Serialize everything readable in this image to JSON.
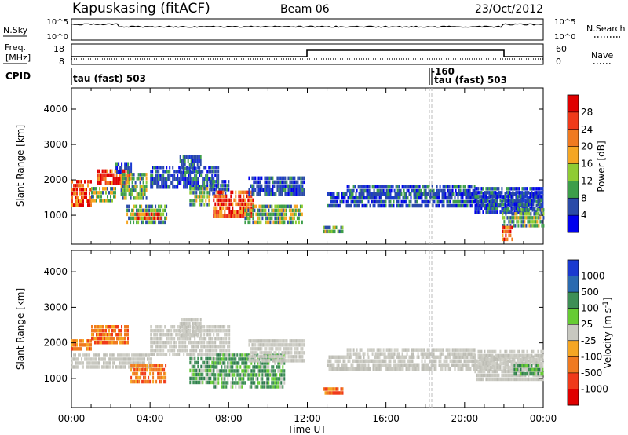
{
  "header": {
    "station": "Kapuskasing (fitACF)",
    "beam": "Beam 06",
    "date": "23/Oct/2012"
  },
  "nsky_panel": {
    "left_label": "N.Sky",
    "right_label": "N.Search",
    "left_ticks": [
      "10^5",
      "10^0"
    ],
    "right_ticks": [
      "10^5",
      "10^0"
    ]
  },
  "freq_panel": {
    "left_label_1": "Freq.",
    "left_label_2": "[MHz]",
    "right_label": "Nave",
    "left_ticks": [
      "18",
      "8"
    ],
    "right_ticks": [
      "60",
      "0"
    ]
  },
  "cpid_panel": {
    "label": "CPID",
    "segments": [
      {
        "label": "tau (fast) 503",
        "start_hour": 0
      },
      {
        "label": "tau (fast) 503",
        "start_hour": 18.1,
        "marker": "-160"
      }
    ]
  },
  "time_axis": {
    "label": "Time UT",
    "ticks": [
      "00:00",
      "04:00",
      "08:00",
      "12:00",
      "16:00",
      "20:00",
      "00:00"
    ],
    "range_hours": [
      0,
      24
    ]
  },
  "chart_data": [
    {
      "type": "heatmap",
      "name": "power",
      "ylabel": "Slant Range [km]",
      "yticks": [
        1000,
        2000,
        3000,
        4000
      ],
      "ylim": [
        180,
        4600
      ],
      "colorbar_label": "Power [dB]",
      "colorbar_ticks": [
        "28",
        "24",
        "20",
        "16",
        "12",
        "8",
        "4"
      ],
      "colorbar_colors": [
        "#e00000",
        "#f03a1a",
        "#f07a20",
        "#f5a623",
        "#8fcc33",
        "#3d9e4a",
        "#2a4aa8",
        "#0000ee"
      ],
      "regions": [
        {
          "t0": 0.0,
          "t1": 1.0,
          "r0": 1250,
          "r1": 2000,
          "level": "high"
        },
        {
          "t0": 1.0,
          "t1": 2.2,
          "r0": 1400,
          "r1": 1800,
          "level": "mid"
        },
        {
          "t0": 1.3,
          "t1": 2.9,
          "r0": 1900,
          "r1": 2300,
          "level": "high"
        },
        {
          "t0": 2.2,
          "t1": 3.0,
          "r0": 2200,
          "r1": 2500,
          "level": "low"
        },
        {
          "t0": 2.5,
          "t1": 3.8,
          "r0": 1500,
          "r1": 2200,
          "level": "mid"
        },
        {
          "t0": 2.8,
          "t1": 4.8,
          "r0": 850,
          "r1": 1300,
          "level": "mid"
        },
        {
          "t0": 3.3,
          "t1": 4.5,
          "r0": 880,
          "r1": 1080,
          "level": "high"
        },
        {
          "t0": 4.0,
          "t1": 7.5,
          "r0": 1800,
          "r1": 2400,
          "level": "low"
        },
        {
          "t0": 5.5,
          "t1": 6.6,
          "r0": 2200,
          "r1": 2700,
          "level": "low"
        },
        {
          "t0": 6.0,
          "t1": 7.0,
          "r0": 1300,
          "r1": 1800,
          "level": "mid"
        },
        {
          "t0": 7.0,
          "t1": 8.0,
          "r0": 1600,
          "r1": 2000,
          "level": "low"
        },
        {
          "t0": 7.2,
          "t1": 9.2,
          "r0": 1000,
          "r1": 1700,
          "level": "high"
        },
        {
          "t0": 8.8,
          "t1": 10.8,
          "r0": 850,
          "r1": 1300,
          "level": "mid"
        },
        {
          "t0": 9.0,
          "t1": 11.8,
          "r0": 1600,
          "r1": 2100,
          "level": "low"
        },
        {
          "t0": 10.5,
          "t1": 11.7,
          "r0": 800,
          "r1": 1300,
          "level": "mid"
        },
        {
          "t0": 12.8,
          "t1": 13.8,
          "r0": 550,
          "r1": 700,
          "level": "mid"
        },
        {
          "t0": 13.0,
          "t1": 24.0,
          "r0": 1300,
          "r1": 1650,
          "level": "low"
        },
        {
          "t0": 14.0,
          "t1": 20.5,
          "r0": 1650,
          "r1": 1850,
          "level": "low"
        },
        {
          "t0": 20.5,
          "t1": 24.0,
          "r0": 1100,
          "r1": 1800,
          "level": "low"
        },
        {
          "t0": 21.9,
          "t1": 24.0,
          "r0": 750,
          "r1": 1200,
          "level": "mid"
        },
        {
          "t0": 21.9,
          "t1": 22.4,
          "r0": 300,
          "r1": 700,
          "level": "high"
        }
      ]
    },
    {
      "type": "heatmap",
      "name": "velocity",
      "ylabel": "Slant Range [km]",
      "yticks": [
        1000,
        2000,
        3000,
        4000
      ],
      "ylim": [
        180,
        4600
      ],
      "colorbar_label": "Velocity [m s^-1]",
      "colorbar_ticks": [
        "1000",
        "500",
        "100",
        "25",
        "-25",
        "-100",
        "-500",
        "-1000"
      ],
      "colorbar_colors": [
        "#1a3ad0",
        "#2a6ab0",
        "#3d8f55",
        "#66cc33",
        "#c8c8c0",
        "#f5a623",
        "#f07a20",
        "#f03a1a",
        "#e00000"
      ],
      "regions": [
        {
          "t0": 0.0,
          "t1": 1.0,
          "r0": 1800,
          "r1": 2100,
          "level": "neg"
        },
        {
          "t0": 1.0,
          "t1": 2.9,
          "r0": 1950,
          "r1": 2500,
          "level": "neg"
        },
        {
          "t0": 0.0,
          "t1": 4.0,
          "r0": 1300,
          "r1": 1700,
          "level": "grey"
        },
        {
          "t0": 3.0,
          "t1": 4.8,
          "r0": 850,
          "r1": 1400,
          "level": "neg"
        },
        {
          "t0": 4.0,
          "t1": 8.0,
          "r0": 1700,
          "r1": 2500,
          "level": "grey"
        },
        {
          "t0": 5.5,
          "t1": 6.6,
          "r0": 2200,
          "r1": 2700,
          "level": "grey"
        },
        {
          "t0": 6.0,
          "t1": 7.2,
          "r0": 900,
          "r1": 1600,
          "level": "pos"
        },
        {
          "t0": 7.2,
          "t1": 10.8,
          "r0": 800,
          "r1": 1700,
          "level": "pos"
        },
        {
          "t0": 9.0,
          "t1": 11.8,
          "r0": 1500,
          "r1": 2100,
          "level": "grey"
        },
        {
          "t0": 12.8,
          "t1": 13.8,
          "r0": 550,
          "r1": 750,
          "level": "neg"
        },
        {
          "t0": 13.0,
          "t1": 24.0,
          "r0": 1300,
          "r1": 1650,
          "level": "grey"
        },
        {
          "t0": 14.0,
          "t1": 20.5,
          "r0": 1650,
          "r1": 1850,
          "level": "grey"
        },
        {
          "t0": 20.5,
          "t1": 24.0,
          "r0": 1000,
          "r1": 1800,
          "level": "grey"
        },
        {
          "t0": 22.5,
          "t1": 24.0,
          "r0": 1100,
          "r1": 1400,
          "level": "pos"
        }
      ]
    }
  ]
}
